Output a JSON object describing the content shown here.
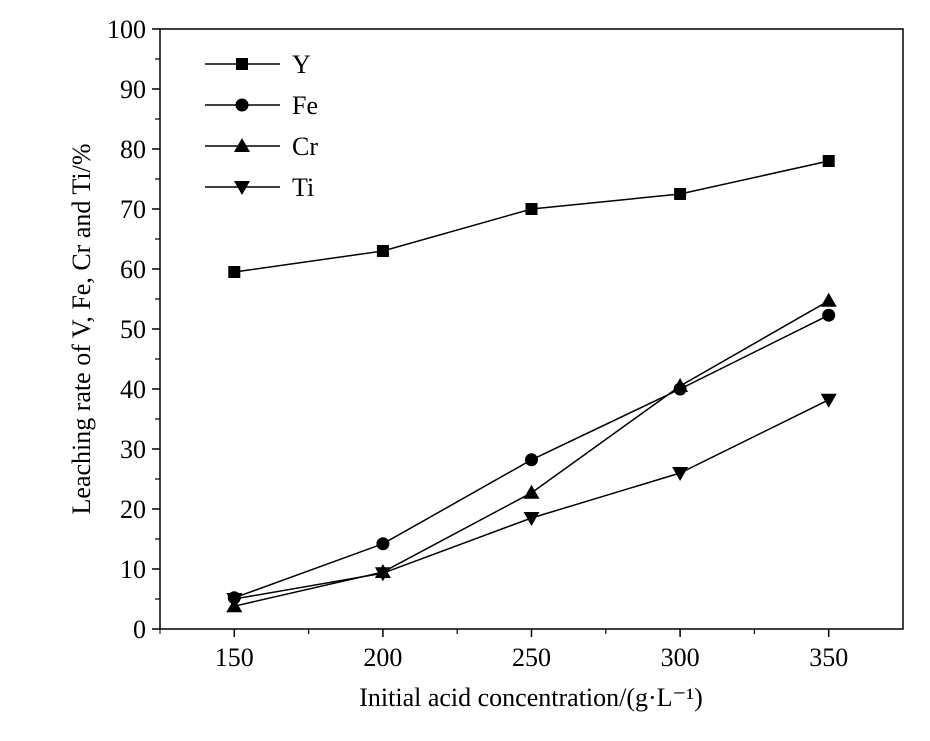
{
  "chart_data": {
    "type": "line",
    "title": "",
    "xlabel": "Initial acid concentration/(g·L⁻¹)",
    "ylabel": "Leaching rate of V, Fe, Cr and Ti/%",
    "x": [
      150,
      200,
      250,
      300,
      350
    ],
    "xlim": [
      125,
      375
    ],
    "ylim": [
      0,
      100
    ],
    "xticks": [
      150,
      200,
      250,
      300,
      350
    ],
    "yticks": [
      0,
      10,
      20,
      30,
      40,
      50,
      60,
      70,
      80,
      90,
      100
    ],
    "grid": false,
    "legend_position": "top-left",
    "series": [
      {
        "name": "Y",
        "marker": "square",
        "values": [
          59.5,
          63.0,
          70.0,
          72.5,
          78.0
        ]
      },
      {
        "name": "Fe",
        "marker": "circle",
        "values": [
          5.2,
          14.2,
          28.2,
          40.0,
          52.3
        ]
      },
      {
        "name": "Cr",
        "marker": "triangle-up",
        "values": [
          3.8,
          9.5,
          22.7,
          40.5,
          54.7
        ]
      },
      {
        "name": "Ti",
        "marker": "triangle-down",
        "values": [
          5.0,
          9.3,
          18.5,
          26.0,
          38.2
        ]
      }
    ]
  }
}
